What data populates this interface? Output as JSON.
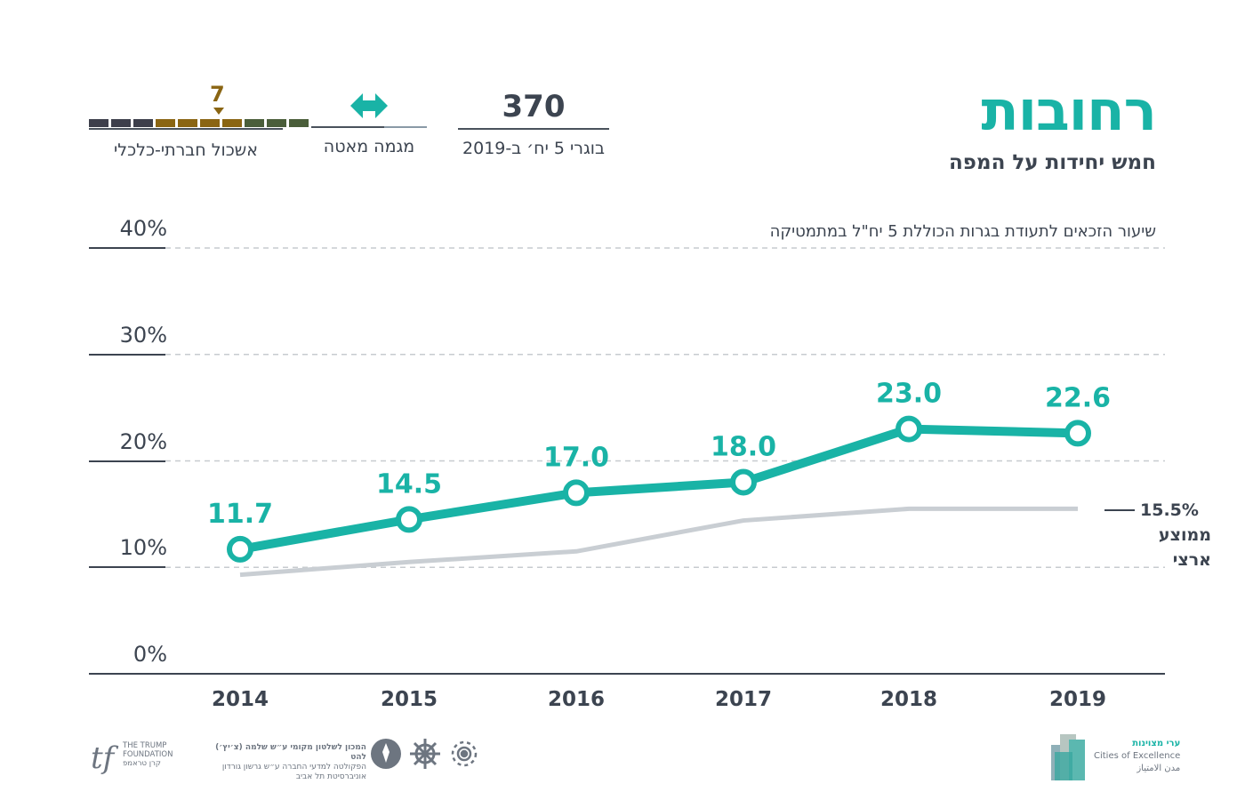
{
  "header": {
    "title": "רחובות",
    "subtitle": "חמש יחידות על המפה"
  },
  "kpis": {
    "graduates": {
      "value": "370",
      "label": "בוגרי 5 יח׳ ב-2019"
    },
    "trend": {
      "label": "מגמה מאטה",
      "icon": "double-arrow-icon"
    },
    "cluster": {
      "value": "7",
      "label": "אשכול חברתי-כלכלי",
      "segment_colors": [
        "#3d3f4b",
        "#3d3f4b",
        "#3d3f4b",
        "#8a6513",
        "#8a6513",
        "#8a6513",
        "#8a6513",
        "#4a5e3a",
        "#4a5e3a",
        "#4a5e3a"
      ]
    }
  },
  "chart_data": {
    "type": "line",
    "title": "שיעור הזכאים לתעודת בגרות הכוללת 5 יח\"ל במתמטיקה",
    "x": [
      "2014",
      "2015",
      "2016",
      "2017",
      "2018",
      "2019"
    ],
    "series": [
      {
        "name": "רחובות",
        "values": [
          11.7,
          14.5,
          17.0,
          18.0,
          23.0,
          22.6
        ],
        "labels": [
          "11.7",
          "14.5",
          "17.0",
          "18.0",
          "23.0",
          "22.6"
        ],
        "color": "#19b3a6"
      },
      {
        "name": "ממוצע ארצי",
        "values": [
          9.3,
          10.5,
          11.5,
          14.4,
          15.5,
          15.5
        ],
        "color": "#c9ced3"
      }
    ],
    "yticks": [
      "0%",
      "10%",
      "20%",
      "30%",
      "40%"
    ],
    "ylim": [
      0,
      40
    ],
    "grid": true,
    "average_value_label": "15.5%",
    "average_label_lines": [
      "ממוצע",
      "ארצי"
    ]
  },
  "footer": {
    "trump_lines": [
      "THE TRUMP",
      "FOUNDATION",
      "קרן טראמפ"
    ],
    "institute_lines": [
      "המכון לשלטון מקומי ע״ש שלמה (צ׳יץ׳) להט",
      "הפקולטה למדעי החברה ע״ש גרשון גורדון",
      "אוניברסיטת תל אביב"
    ],
    "cities_lines": [
      "ערי מצוינות",
      "Cities of Excellence",
      "مدن الامتياز"
    ]
  },
  "colors": {
    "accent": "#19b3a6",
    "text": "#3c4450",
    "national": "#c9ced3"
  }
}
